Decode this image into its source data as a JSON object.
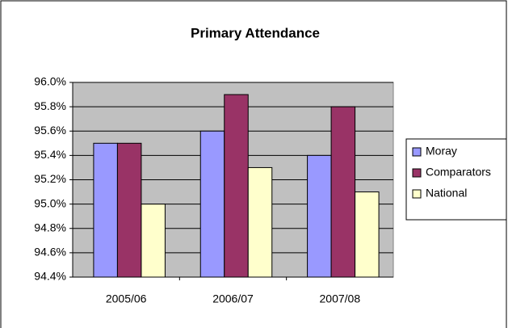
{
  "chart_data": {
    "type": "bar",
    "title": "Primary Attendance",
    "categories": [
      "2005/06",
      "2006/07",
      "2007/08"
    ],
    "series": [
      {
        "name": "Moray",
        "color": "#9999ff",
        "values": [
          95.5,
          95.6,
          95.4
        ]
      },
      {
        "name": "Comparators",
        "color": "#993366",
        "values": [
          95.5,
          95.9,
          95.8
        ]
      },
      {
        "name": "National",
        "color": "#ffffcc",
        "values": [
          95.0,
          95.3,
          95.1
        ]
      }
    ],
    "ylim": [
      94.4,
      96.0
    ],
    "yticks": [
      {
        "value": 94.4,
        "label": "94.4%"
      },
      {
        "value": 94.6,
        "label": "94.6%"
      },
      {
        "value": 94.8,
        "label": "94.8%"
      },
      {
        "value": 95.0,
        "label": "95.0%"
      },
      {
        "value": 95.2,
        "label": "95.2%"
      },
      {
        "value": 95.4,
        "label": "95.4%"
      },
      {
        "value": 95.6,
        "label": "95.6%"
      },
      {
        "value": 95.8,
        "label": "95.8%"
      },
      {
        "value": 96.0,
        "label": "96.0%"
      }
    ],
    "grid": true,
    "legend": "right"
  }
}
